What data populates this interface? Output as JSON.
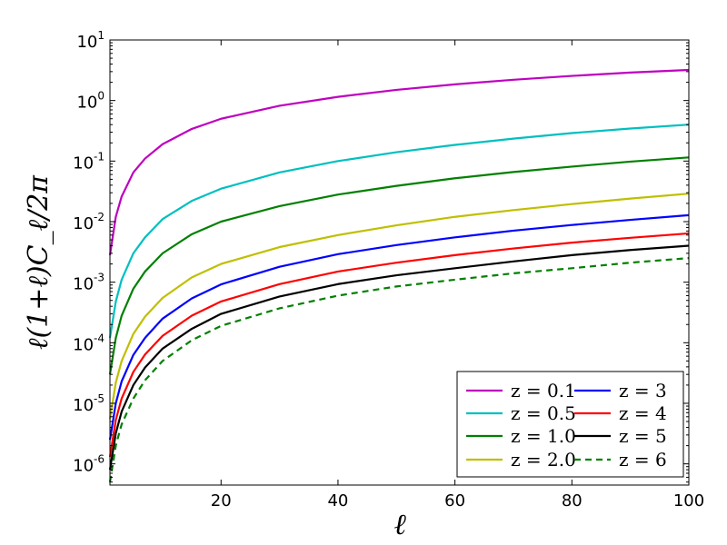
{
  "chart_data": {
    "type": "line",
    "xlabel": "ℓ",
    "ylabel": "ℓ(1+ℓ)C_ℓ/2π",
    "xlim": [
      1,
      100
    ],
    "ylim_log10": [
      -6.35,
      1.0
    ],
    "yscale": "log",
    "grid": false,
    "legend_placement": "lower-right",
    "legend_columns": 2,
    "x_ticks": [
      {
        "value": 20,
        "label": "20"
      },
      {
        "value": 40,
        "label": "40"
      },
      {
        "value": 60,
        "label": "60"
      },
      {
        "value": 80,
        "label": "80"
      },
      {
        "value": 100,
        "label": "100"
      }
    ],
    "y_ticks": [
      {
        "exp": 1,
        "base": "10",
        "sup": "1"
      },
      {
        "exp": 0,
        "base": "10",
        "sup": "0"
      },
      {
        "exp": -1,
        "base": "10",
        "sup": "-1"
      },
      {
        "exp": -2,
        "base": "10",
        "sup": "-2"
      },
      {
        "exp": -3,
        "base": "10",
        "sup": "-3"
      },
      {
        "exp": -4,
        "base": "10",
        "sup": "-4"
      },
      {
        "exp": -5,
        "base": "10",
        "sup": "-5"
      },
      {
        "exp": -6,
        "base": "10",
        "sup": "-6"
      }
    ],
    "x": [
      1,
      2,
      3,
      5,
      7,
      10,
      15,
      20,
      30,
      40,
      50,
      60,
      70,
      80,
      90,
      100
    ],
    "series": [
      {
        "name": "z = 0.1",
        "color": "#bf00bf",
        "dash": "solid",
        "values": [
          0.0028,
          0.012,
          0.026,
          0.065,
          0.11,
          0.19,
          0.34,
          0.5,
          0.82,
          1.15,
          1.5,
          1.85,
          2.2,
          2.55,
          2.9,
          3.2
        ]
      },
      {
        "name": "z = 0.5",
        "color": "#00bfbf",
        "dash": "solid",
        "values": [
          0.00012,
          0.00048,
          0.0011,
          0.003,
          0.0055,
          0.011,
          0.022,
          0.035,
          0.065,
          0.1,
          0.14,
          0.185,
          0.235,
          0.29,
          0.345,
          0.4
        ]
      },
      {
        "name": "z = 1.0",
        "color": "#008000",
        "dash": "solid",
        "values": [
          3e-05,
          0.00012,
          0.00028,
          0.00078,
          0.0015,
          0.003,
          0.0062,
          0.01,
          0.018,
          0.028,
          0.039,
          0.052,
          0.066,
          0.081,
          0.098,
          0.115
        ]
      },
      {
        "name": "z = 2.0",
        "color": "#bfbf00",
        "dash": "solid",
        "values": [
          5.5e-06,
          2.2e-05,
          5e-05,
          0.00014,
          0.00027,
          0.00055,
          0.0012,
          0.002,
          0.0038,
          0.006,
          0.0087,
          0.012,
          0.0155,
          0.0195,
          0.024,
          0.029
        ]
      },
      {
        "name": "z = 3",
        "color": "#0000ff",
        "dash": "solid",
        "values": [
          2.5e-06,
          1e-05,
          2.3e-05,
          6.3e-05,
          0.00012,
          0.00025,
          0.00054,
          0.00092,
          0.0018,
          0.0029,
          0.0041,
          0.0055,
          0.0071,
          0.0088,
          0.0107,
          0.0128
        ]
      },
      {
        "name": "z = 4",
        "color": "#ff0000",
        "dash": "solid",
        "values": [
          1.3e-06,
          5.3e-06,
          1.2e-05,
          3.3e-05,
          6.4e-05,
          0.00013,
          0.00028,
          0.00048,
          0.00093,
          0.0015,
          0.0021,
          0.0028,
          0.0036,
          0.0045,
          0.0054,
          0.0064
        ]
      },
      {
        "name": "z = 5",
        "color": "#000000",
        "dash": "solid",
        "values": [
          8e-07,
          3.2e-06,
          7.3e-06,
          2e-05,
          3.9e-05,
          8e-05,
          0.00017,
          0.0003,
          0.00058,
          0.00093,
          0.0013,
          0.0017,
          0.0022,
          0.0028,
          0.0034,
          0.004
        ]
      },
      {
        "name": "z = 6",
        "color": "#008000",
        "dash": "dashed",
        "values": [
          5e-07,
          2e-06,
          4.5e-06,
          1.2e-05,
          2.4e-05,
          5e-05,
          0.00011,
          0.00019,
          0.00037,
          0.0006,
          0.00085,
          0.0011,
          0.0014,
          0.0017,
          0.0021,
          0.0025
        ]
      }
    ]
  }
}
